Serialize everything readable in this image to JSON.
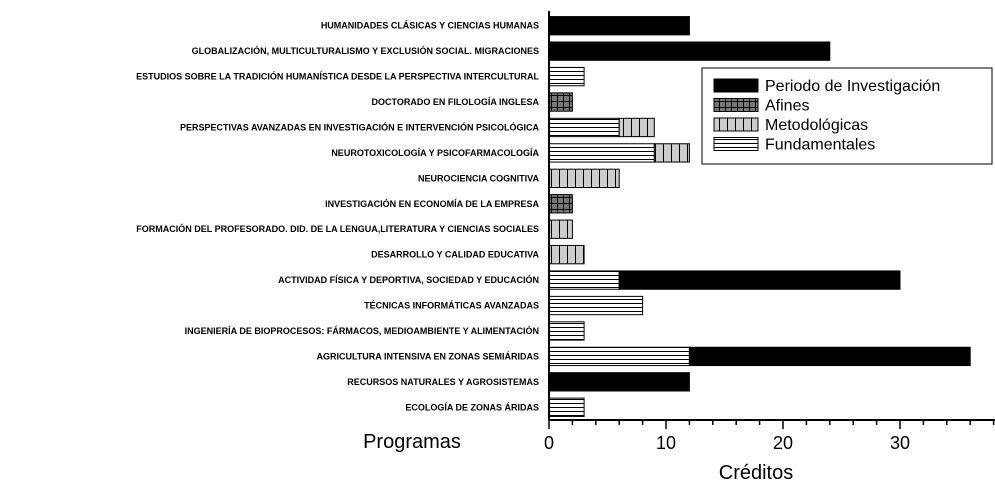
{
  "chart_data": {
    "type": "bar",
    "orientation": "horizontal",
    "stacked": true,
    "title": "",
    "xlabel": "Créditos",
    "ylabel": "Programas",
    "xlim": [
      0,
      38
    ],
    "xticks": [
      0,
      10,
      20,
      30
    ],
    "grid": false,
    "legend_position": "top-right",
    "categories": [
      "HUMANIDADES CLÁSICAS Y CIENCIAS HUMANAS",
      "GLOBALIZACIÓN, MULTICULTURALISMO Y EXCLUSIÓN SOCIAL. MIGRACIONES",
      "ESTUDIOS SOBRE LA TRADICIÓN HUMANÍSTICA DESDE LA PERSPECTIVA INTERCULTURAL",
      "DOCTORADO EN FILOLOGÍA INGLESA",
      "PERSPECTIVAS AVANZADAS EN INVESTIGACIÓN E INTERVENCIÓN PSICOLÓGICA",
      "NEUROTOXICOLOGÍA Y PSICOFARMACOLOGÍA",
      "NEUROCIENCIA COGNITIVA",
      "INVESTIGACIÓN EN ECONOMÍA DE LA EMPRESA",
      "FORMACIÓN DEL PROFESORADO. DID. DE LA LENGUA,LITERATURA Y CIENCIAS SOCIALES",
      "DESARROLLO Y CALIDAD EDUCATIVA",
      "ACTIVIDAD FÍSICA Y DEPORTIVA, SOCIEDAD Y EDUCACIÓN",
      "TÉCNICAS INFORMÁTICAS AVANZADAS",
      "INGENIERÍA DE BIOPROCESOS: FÁRMACOS, MEDIOAMBIENTE Y ALIMENTACIÓN",
      "AGRICULTURA INTENSIVA EN ZONAS SEMIÁRIDAS",
      "RECURSOS NATURALES Y AGROSISTEMAS",
      "ECOLOGÍA DE ZONAS ÁRIDAS"
    ],
    "series": [
      {
        "name": "Fundamentales",
        "pattern": "horizontal-lines",
        "color": "#ffffff",
        "values": [
          0,
          0,
          3,
          0,
          6,
          9,
          0,
          0,
          0,
          0,
          6,
          8,
          3,
          12,
          0,
          3
        ]
      },
      {
        "name": "Metodológicas",
        "pattern": "vertical-lines",
        "color": "#cccccc",
        "values": [
          0,
          0,
          0,
          0,
          3,
          3,
          6,
          0,
          2,
          3,
          0,
          0,
          0,
          0,
          0,
          0
        ]
      },
      {
        "name": "Afines",
        "pattern": "grid",
        "color": "#777777",
        "values": [
          0,
          0,
          0,
          2,
          0,
          0,
          0,
          2,
          0,
          0,
          0,
          0,
          0,
          0,
          0,
          0
        ]
      },
      {
        "name": "Periodo de Investigación",
        "pattern": "solid",
        "color": "#000000",
        "values": [
          12,
          24,
          0,
          0,
          0,
          0,
          0,
          0,
          0,
          0,
          24,
          0,
          0,
          24,
          12,
          0
        ]
      }
    ],
    "legend_order": [
      "Periodo de Investigación",
      "Afines",
      "Metodológicas",
      "Fundamentales"
    ]
  }
}
